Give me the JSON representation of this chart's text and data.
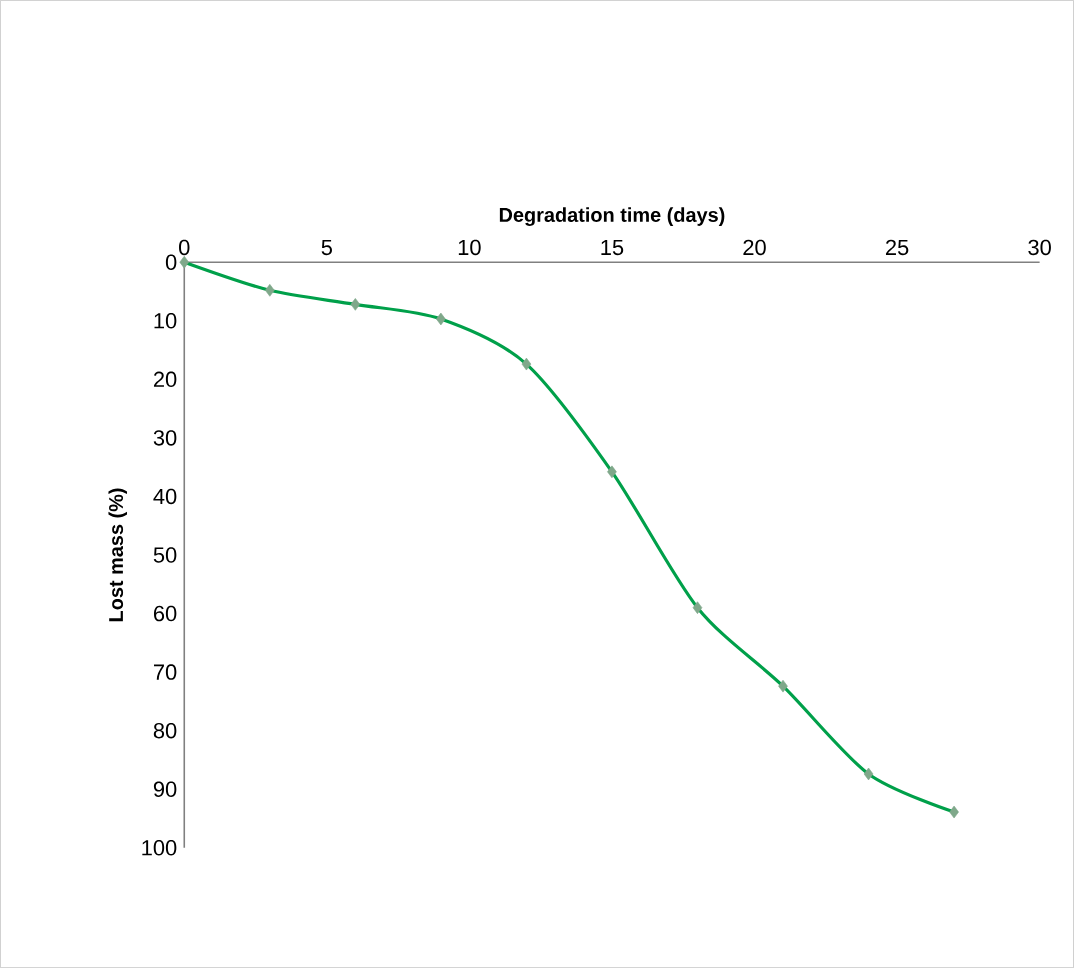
{
  "chart_data": {
    "type": "line",
    "xlabel": "Degradation time (days)",
    "ylabel": "Lost mass (%)",
    "x": [
      0,
      3,
      6,
      9,
      12,
      15,
      18,
      21,
      24,
      27
    ],
    "series": [
      {
        "color": "#00a04a",
        "values": [
          0,
          4.8,
          7.2,
          9.7,
          17.4,
          35.8,
          59,
          72.4,
          87.4,
          93.9
        ]
      }
    ],
    "xlim": [
      0,
      30
    ],
    "xticks": [
      0,
      5,
      10,
      15,
      20,
      25,
      30
    ],
    "ylim": [
      100,
      0
    ],
    "yticks": [
      0,
      10,
      20,
      30,
      40,
      50,
      60,
      70,
      80,
      90,
      100
    ],
    "marker": "diamond",
    "grid": false
  }
}
